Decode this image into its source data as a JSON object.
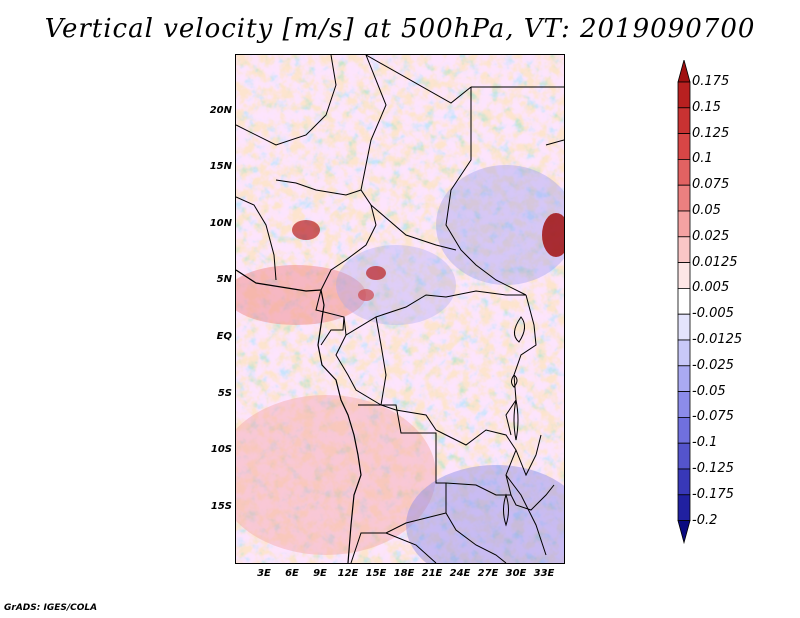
{
  "title": "Vertical velocity [m/s] at 500hPa, VT: 2019090700",
  "credit": "GrADS: IGES/COLA",
  "map": {
    "lat_labels": [
      "20N",
      "15N",
      "10N",
      "5N",
      "EQ",
      "5S",
      "10S",
      "15S"
    ],
    "lat_values": [
      20,
      15,
      10,
      5,
      0,
      -5,
      -10,
      -15
    ],
    "lon_labels": [
      "3E",
      "6E",
      "9E",
      "12E",
      "15E",
      "18E",
      "21E",
      "24E",
      "27E",
      "30E",
      "33E"
    ],
    "lon_values": [
      3,
      6,
      9,
      12,
      15,
      18,
      21,
      24,
      27,
      30,
      33
    ],
    "lat_range": [
      -20,
      25
    ],
    "lon_range": [
      0,
      34.5
    ]
  },
  "colorbar": {
    "labels": [
      "0.175",
      "0.15",
      "0.125",
      "0.1",
      "0.075",
      "0.05",
      "0.025",
      "0.0125",
      "0.005",
      "-0.005",
      "-0.0125",
      "-0.025",
      "-0.05",
      "-0.075",
      "-0.1",
      "-0.125",
      "-0.175",
      "-0.2"
    ],
    "colors": [
      "#a01010",
      "#b82020",
      "#c83232",
      "#d84646",
      "#e26262",
      "#ec8080",
      "#f4a2a2",
      "#f9c6c6",
      "#fde6e6",
      "#ffffff",
      "#e4e4fc",
      "#c8c8f8",
      "#aaaaf2",
      "#8c8cea",
      "#7070de",
      "#5454cc",
      "#3838b8",
      "#2020a0",
      "#0a0a80"
    ]
  }
}
